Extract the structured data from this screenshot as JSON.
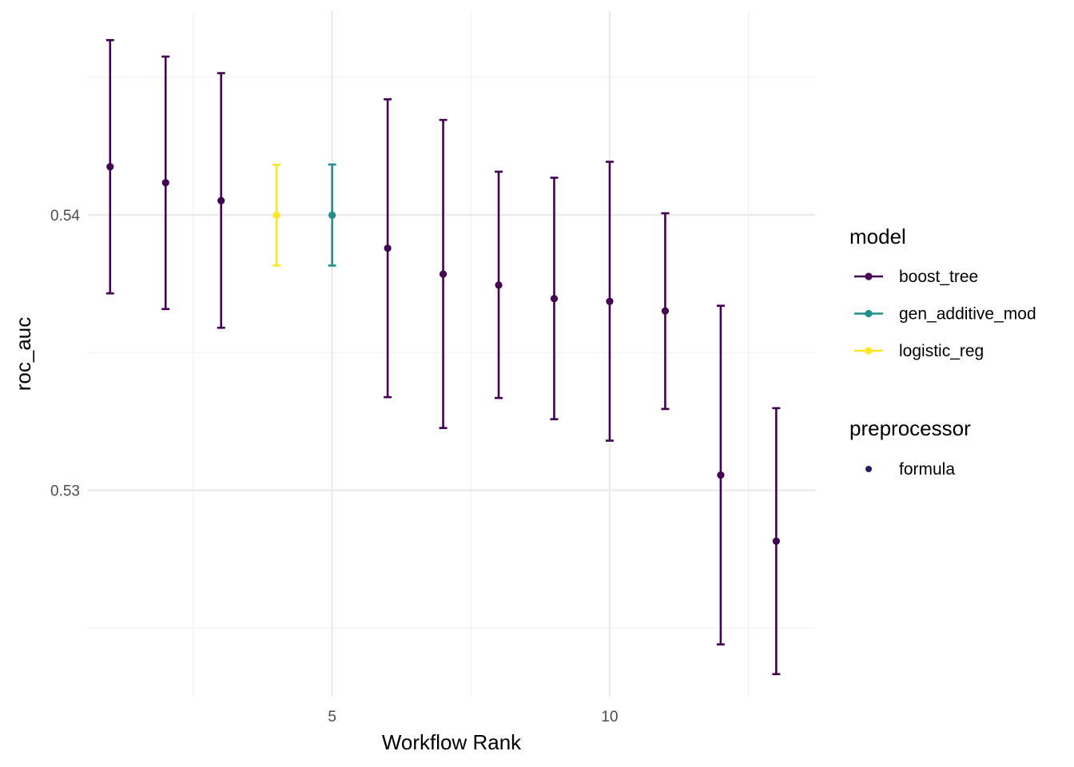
{
  "chart_data": {
    "type": "scatter",
    "title": "",
    "xlabel": "Workflow Rank",
    "ylabel": "roc_auc",
    "xlim": [
      0.6,
      13.7
    ],
    "ylim": [
      0.5225,
      0.5474
    ],
    "x_ticks": [
      5,
      10
    ],
    "y_ticks": [
      0.53,
      0.54
    ],
    "x_minor_ticks": [
      2.5,
      7.5,
      12.5
    ],
    "y_minor_ticks": [
      0.525,
      0.535,
      0.545
    ],
    "x_tick_labels": [
      "5",
      "10"
    ],
    "y_tick_labels": [
      "0.53",
      "0.54"
    ],
    "grid": true,
    "legend_position": "right",
    "error_bars": true,
    "colors": {
      "boost_tree": "#440154",
      "gen_additive_mod": "#21908C",
      "logistic_reg": "#FDE725",
      "formula": "#1f1f6b",
      "grid_major": "#ebebeb",
      "grid_minor": "#f2f2f2"
    },
    "points": [
      {
        "rank": 1,
        "model": "boost_tree",
        "mean": 0.54175,
        "lower": 0.53715,
        "upper": 0.54635
      },
      {
        "rank": 2,
        "model": "boost_tree",
        "mean": 0.54117,
        "lower": 0.53658,
        "upper": 0.54575
      },
      {
        "rank": 3,
        "model": "boost_tree",
        "mean": 0.54052,
        "lower": 0.5359,
        "upper": 0.54515
      },
      {
        "rank": 4,
        "model": "logistic_reg",
        "mean": 0.53999,
        "lower": 0.53816,
        "upper": 0.54182
      },
      {
        "rank": 5,
        "model": "gen_additive_mod",
        "mean": 0.53999,
        "lower": 0.53816,
        "upper": 0.54183
      },
      {
        "rank": 6,
        "model": "boost_tree",
        "mean": 0.53879,
        "lower": 0.53338,
        "upper": 0.5442
      },
      {
        "rank": 7,
        "model": "boost_tree",
        "mean": 0.53785,
        "lower": 0.53226,
        "upper": 0.54345
      },
      {
        "rank": 8,
        "model": "boost_tree",
        "mean": 0.53745,
        "lower": 0.53335,
        "upper": 0.54157
      },
      {
        "rank": 9,
        "model": "boost_tree",
        "mean": 0.53696,
        "lower": 0.53258,
        "upper": 0.54135
      },
      {
        "rank": 10,
        "model": "boost_tree",
        "mean": 0.53686,
        "lower": 0.5318,
        "upper": 0.54193
      },
      {
        "rank": 11,
        "model": "boost_tree",
        "mean": 0.53651,
        "lower": 0.53295,
        "upper": 0.54006
      },
      {
        "rank": 12,
        "model": "boost_tree",
        "mean": 0.53055,
        "lower": 0.5244,
        "upper": 0.5367
      },
      {
        "rank": 13,
        "model": "boost_tree",
        "mean": 0.52815,
        "lower": 0.52332,
        "upper": 0.53298
      }
    ],
    "legend": {
      "model": {
        "title": "model",
        "items": [
          {
            "key": "boost_tree",
            "label": "boost_tree"
          },
          {
            "key": "gen_additive_mod",
            "label": "gen_additive_mod"
          },
          {
            "key": "logistic_reg",
            "label": "logistic_reg"
          }
        ]
      },
      "preprocessor": {
        "title": "preprocessor",
        "items": [
          {
            "key": "formula",
            "label": "formula"
          }
        ]
      }
    }
  }
}
